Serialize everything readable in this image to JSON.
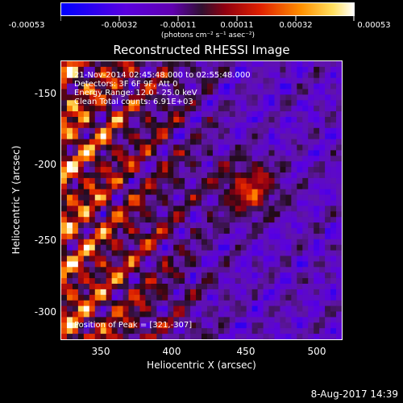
{
  "colorbar": {
    "labels": [
      "-0.00053",
      "-0.00032",
      "-0.00011",
      "0.00011",
      "0.00032",
      "0.00053"
    ],
    "unit": "(photons cm⁻² s⁻¹ asec⁻²)",
    "colors": [
      "#0000ff",
      "#6a00d0",
      "#3a1040",
      "#c00000",
      "#ff8000",
      "#ffffff"
    ]
  },
  "title": "Reconstructed RHESSI Image",
  "annotations": {
    "time": "21-Nov-2014 02:45:48.000 to 02:55:48.000",
    "detectors": "Detectors: 3F 6F 9F, Att 0",
    "energy": "Energy Range: 12.0 - 25.0 keV",
    "clean": "Clean    Total counts: 6.91E+03",
    "peak": "Position of Peak = [321,-307]"
  },
  "axes": {
    "xlabel": "Heliocentric X (arcsec)",
    "ylabel": "Heliocentric Y (arcsec)",
    "xticks": [
      "350",
      "400",
      "450",
      "500"
    ],
    "yticks": [
      "-150",
      "-200",
      "-250",
      "-300"
    ]
  },
  "footer": "8-Aug-2017 14:39"
}
